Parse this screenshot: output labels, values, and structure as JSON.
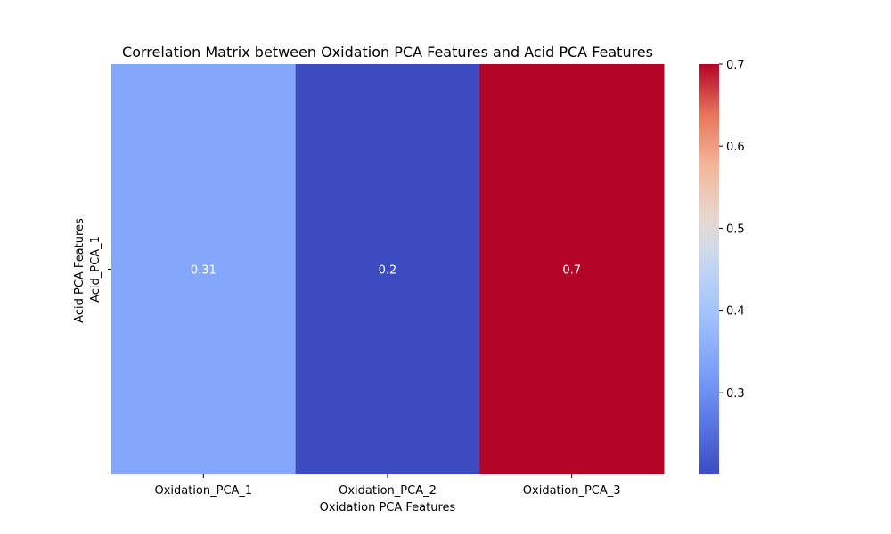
{
  "chart_data": {
    "type": "heatmap",
    "title": "Correlation Matrix between Oxidation PCA Features and Acid PCA Features",
    "xlabel": "Oxidation PCA Features",
    "ylabel": "Acid PCA Features",
    "x_categories": [
      "Oxidation_PCA_1",
      "Oxidation_PCA_2",
      "Oxidation_PCA_3"
    ],
    "y_categories": [
      "Acid_PCA_1"
    ],
    "values": [
      [
        0.31,
        0.2,
        0.7
      ]
    ],
    "cell_labels": [
      [
        "0.31",
        "0.2",
        "0.7"
      ]
    ],
    "colormap": "coolwarm",
    "colorbar": {
      "range": [
        0.2,
        0.7
      ],
      "ticks": [
        0.3,
        0.4,
        0.5,
        0.6,
        0.7
      ],
      "tick_labels": [
        "0.3",
        "0.4",
        "0.5",
        "0.6",
        "0.7"
      ]
    },
    "cell_colors": [
      [
        "#84a7fc",
        "#3b4cc0",
        "#b40426"
      ]
    ]
  }
}
